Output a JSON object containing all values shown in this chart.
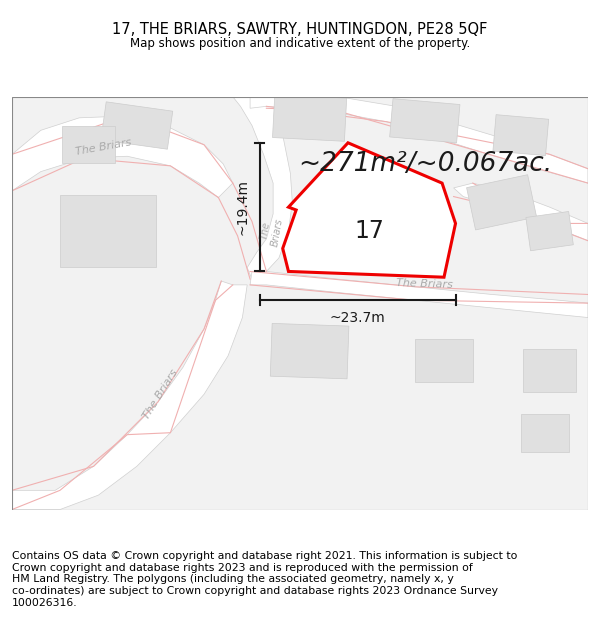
{
  "title": "17, THE BRIARS, SAWTRY, HUNTINGDON, PE28 5QF",
  "subtitle": "Map shows position and indicative extent of the property.",
  "footer": "Contains OS data © Crown copyright and database right 2021. This information is subject to\nCrown copyright and database rights 2023 and is reproduced with the permission of\nHM Land Registry. The polygons (including the associated geometry, namely x, y\nco-ordinates) are subject to Crown copyright and database rights 2023 Ordnance Survey\n100026316.",
  "area_text": "~271m²/~0.067ac.",
  "dim_vertical": "~19.4m",
  "dim_horizontal": "~23.7m",
  "label_17": "17",
  "bg_color": "#f2f2f2",
  "road_fill": "#ffffff",
  "road_edge": "#d0d0d0",
  "plot_fill": "#ffffff",
  "plot_outline": "#ee0000",
  "building_fill": "#e0e0e0",
  "building_edge": "#cccccc",
  "pink_color": "#f0b0b0",
  "label_color": "#aaaaaa",
  "dim_color": "#1a1a1a",
  "text_color": "#1a1a1a",
  "title_fontsize": 10.5,
  "subtitle_fontsize": 8.5,
  "footer_fontsize": 7.8,
  "area_fontsize": 19,
  "label_fontsize": 17,
  "dim_fontsize": 10,
  "road_label_fontsize": 8
}
